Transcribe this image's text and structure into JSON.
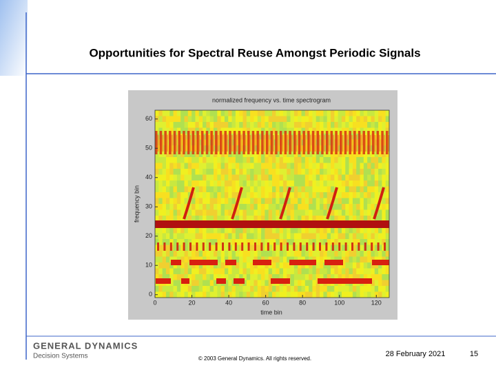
{
  "header": {
    "title": "Opportunities for Spectral Reuse Amongst Periodic Signals"
  },
  "figure": {
    "title": "normalized frequency vs. time spectrogram",
    "xlabel": "time bin",
    "ylabel": "frequency bin",
    "xlim": [
      0,
      127
    ],
    "ylim": [
      -1,
      63
    ],
    "xticks": [
      0,
      20,
      40,
      60,
      80,
      100,
      120
    ],
    "yticks": [
      0,
      10,
      20,
      30,
      40,
      50,
      60
    ]
  },
  "footer": {
    "company": "GENERAL DYNAMICS",
    "division": "Decision Systems",
    "copyright": "© 2003 General Dynamics. All rights reserved.",
    "date": "28 February 2021",
    "page": "15"
  }
}
